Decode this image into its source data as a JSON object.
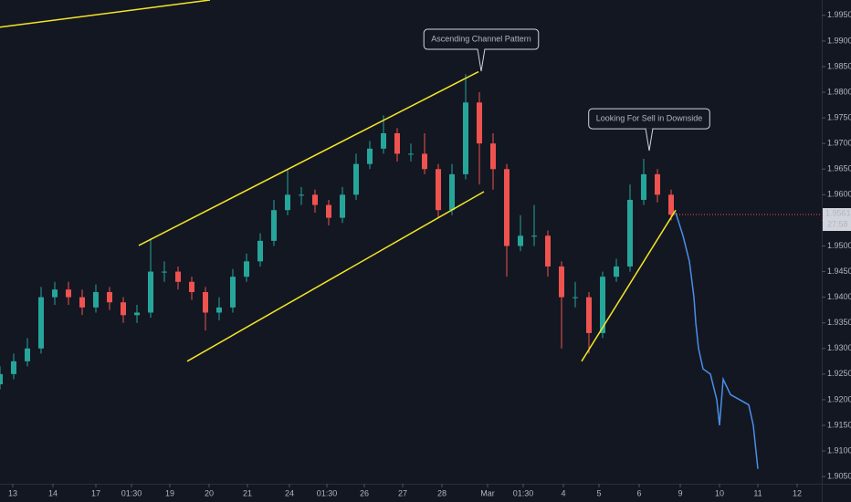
{
  "chart_data": {
    "type": "candlestick",
    "xlim": [
      0,
      900
    ],
    "ylim": [
      1.9036,
      1.998
    ],
    "grid": false,
    "up_color": "#26a69a",
    "down_color": "#ef5350",
    "x": [
      0,
      15,
      30,
      45,
      60,
      75,
      90,
      105,
      120,
      135,
      150,
      165,
      180,
      195,
      210,
      225,
      240,
      255,
      270,
      285,
      300,
      315,
      330,
      345,
      360,
      375,
      390,
      405,
      420,
      435,
      450,
      465,
      480,
      495,
      510,
      525,
      540,
      555,
      570,
      585,
      600,
      615,
      630,
      645,
      660,
      675,
      690,
      705,
      720,
      735
    ],
    "open": [
      1.923,
      1.925,
      1.9275,
      1.93,
      1.94,
      1.9415,
      1.94,
      1.938,
      1.941,
      1.939,
      1.9365,
      1.937,
      1.945,
      1.945,
      1.943,
      1.941,
      1.937,
      1.938,
      1.944,
      1.947,
      1.951,
      1.957,
      1.96,
      1.96,
      1.958,
      1.9555,
      1.96,
      1.966,
      1.969,
      1.972,
      1.968,
      1.968,
      1.965,
      1.957,
      1.964,
      1.978,
      1.97,
      1.965,
      1.95,
      1.952,
      1.952,
      1.946,
      1.94,
      1.94,
      1.933,
      1.944,
      1.946,
      1.959,
      1.964,
      1.96
    ],
    "high": [
      1.9265,
      1.929,
      1.932,
      1.942,
      1.943,
      1.943,
      1.9415,
      1.9425,
      1.942,
      1.94,
      1.9385,
      1.9515,
      1.947,
      1.946,
      1.944,
      1.942,
      1.94,
      1.9455,
      1.9485,
      1.9525,
      1.959,
      1.965,
      1.9615,
      1.961,
      1.959,
      1.9615,
      1.968,
      1.9705,
      1.9755,
      1.973,
      1.97,
      1.972,
      1.966,
      1.966,
      1.9835,
      1.98,
      1.972,
      1.966,
      1.956,
      1.958,
      1.953,
      1.947,
      1.943,
      1.941,
      1.945,
      1.9475,
      1.962,
      1.967,
      1.965,
      1.961
    ],
    "low": [
      1.922,
      1.924,
      1.9265,
      1.929,
      1.9385,
      1.9385,
      1.9365,
      1.937,
      1.9375,
      1.935,
      1.935,
      1.936,
      1.943,
      1.9415,
      1.9395,
      1.9335,
      1.9355,
      1.937,
      1.943,
      1.946,
      1.95,
      1.956,
      1.958,
      1.9565,
      1.954,
      1.9545,
      1.959,
      1.965,
      1.968,
      1.9665,
      1.9665,
      1.964,
      1.9555,
      1.956,
      1.963,
      1.962,
      1.961,
      1.944,
      1.949,
      1.95,
      1.944,
      1.93,
      1.938,
      1.929,
      1.932,
      1.943,
      1.945,
      1.958,
      1.9585,
      1.955
    ],
    "close": [
      1.925,
      1.9275,
      1.93,
      1.94,
      1.9415,
      1.94,
      1.938,
      1.941,
      1.939,
      1.9365,
      1.937,
      1.945,
      1.945,
      1.943,
      1.941,
      1.937,
      1.938,
      1.944,
      1.947,
      1.951,
      1.957,
      1.96,
      1.96,
      1.958,
      1.9555,
      1.96,
      1.966,
      1.969,
      1.972,
      1.968,
      1.968,
      1.965,
      1.957,
      1.964,
      1.978,
      1.97,
      1.965,
      1.95,
      1.952,
      1.952,
      1.946,
      1.94,
      1.94,
      1.933,
      1.944,
      1.946,
      1.959,
      1.964,
      1.96,
      1.9561
    ],
    "projection": {
      "color": "#4a8fe7",
      "x": [
        740,
        748,
        755,
        760,
        762,
        765,
        770,
        778,
        785,
        788,
        792,
        800,
        810,
        820,
        825,
        830
      ],
      "values": [
        1.9565,
        1.952,
        1.947,
        1.94,
        1.935,
        1.93,
        1.926,
        1.925,
        1.92,
        1.915,
        1.924,
        1.921,
        1.92,
        1.919,
        1.915,
        1.9065
      ]
    },
    "drawings": {
      "color": "#f5e625",
      "lines": [
        {
          "x": [
            152,
            524
          ],
          "values": [
            1.9501,
            1.984
          ]
        },
        {
          "x": [
            205,
            530
          ],
          "values": [
            1.9275,
            1.9606
          ]
        },
        {
          "x": [
            637,
            740
          ],
          "values": [
            1.9275,
            1.957
          ]
        },
        {
          "x": [
            0,
            230
          ],
          "values": [
            1.9927,
            1.998
          ]
        }
      ]
    },
    "annotations": [
      {
        "text": "Ascending Channel Pattern",
        "x": 527,
        "y": 1.9841
      },
      {
        "text": "Looking For Sell in Downside",
        "x": 711,
        "y": 1.9686
      }
    ],
    "last_price": 1.95614,
    "countdown": "27:58",
    "yticks": [
      {
        "value": 1.995,
        "label": "1.99500"
      },
      {
        "value": 1.99,
        "label": "1.99000"
      },
      {
        "value": 1.985,
        "label": "1.98500"
      },
      {
        "value": 1.98,
        "label": "1.98000"
      },
      {
        "value": 1.975,
        "label": "1.97500"
      },
      {
        "value": 1.97,
        "label": "1.97000"
      },
      {
        "value": 1.965,
        "label": "1.96500"
      },
      {
        "value": 1.96,
        "label": "1.96000"
      },
      {
        "value": 1.955,
        "label": "1.95500"
      },
      {
        "value": 1.95,
        "label": "1.95000"
      },
      {
        "value": 1.945,
        "label": "1.94500"
      },
      {
        "value": 1.94,
        "label": "1.94000"
      },
      {
        "value": 1.935,
        "label": "1.93500"
      },
      {
        "value": 1.93,
        "label": "1.93000"
      },
      {
        "value": 1.925,
        "label": "1.92500"
      },
      {
        "value": 1.92,
        "label": "1.92000"
      },
      {
        "value": 1.915,
        "label": "1.91500"
      },
      {
        "value": 1.91,
        "label": "1.91000"
      },
      {
        "value": 1.905,
        "label": "1.90500"
      }
    ],
    "xticks": [
      {
        "value": 14,
        "label": "13"
      },
      {
        "value": 58,
        "label": "14"
      },
      {
        "value": 105,
        "label": "17"
      },
      {
        "value": 144,
        "label": "01:30"
      },
      {
        "value": 186,
        "label": "19"
      },
      {
        "value": 229,
        "label": "20"
      },
      {
        "value": 271,
        "label": "21"
      },
      {
        "value": 317,
        "label": "24"
      },
      {
        "value": 358,
        "label": "01:30"
      },
      {
        "value": 399,
        "label": "26"
      },
      {
        "value": 441,
        "label": "27"
      },
      {
        "value": 484,
        "label": "28"
      },
      {
        "value": 534,
        "label": "Mar"
      },
      {
        "value": 573,
        "label": "01:30"
      },
      {
        "value": 617,
        "label": "4"
      },
      {
        "value": 656,
        "label": "5"
      },
      {
        "value": 700,
        "label": "6"
      },
      {
        "value": 745,
        "label": "9"
      },
      {
        "value": 788,
        "label": "10"
      },
      {
        "value": 830,
        "label": "11"
      },
      {
        "value": 873,
        "label": "12"
      }
    ]
  }
}
